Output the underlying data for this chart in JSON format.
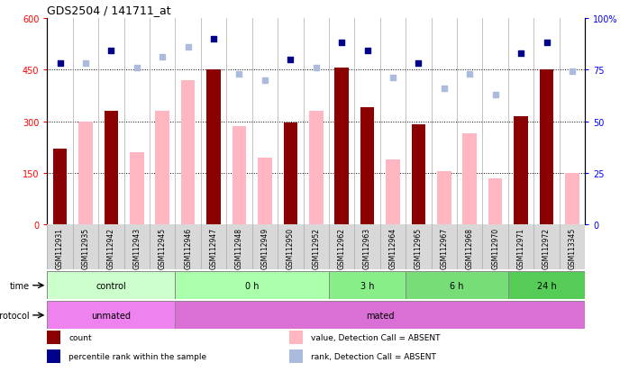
{
  "title": "GDS2504 / 141711_at",
  "samples": [
    "GSM112931",
    "GSM112935",
    "GSM112942",
    "GSM112943",
    "GSM112945",
    "GSM112946",
    "GSM112947",
    "GSM112948",
    "GSM112949",
    "GSM112950",
    "GSM112952",
    "GSM112962",
    "GSM112963",
    "GSM112964",
    "GSM112965",
    "GSM112967",
    "GSM112968",
    "GSM112970",
    "GSM112971",
    "GSM112972",
    "GSM113345"
  ],
  "count_values": [
    220,
    null,
    330,
    null,
    null,
    null,
    450,
    null,
    null,
    295,
    null,
    455,
    340,
    null,
    290,
    null,
    null,
    null,
    315,
    450,
    null
  ],
  "absent_value_values": [
    null,
    300,
    null,
    210,
    330,
    420,
    null,
    285,
    195,
    null,
    330,
    null,
    null,
    190,
    null,
    155,
    265,
    135,
    null,
    null,
    150
  ],
  "percentile_rank_values": [
    78,
    null,
    84,
    null,
    null,
    null,
    90,
    null,
    null,
    80,
    null,
    88,
    84,
    null,
    78,
    null,
    null,
    null,
    83,
    88,
    null
  ],
  "absent_rank_values": [
    null,
    78,
    null,
    76,
    81,
    86,
    null,
    73,
    70,
    null,
    76,
    null,
    null,
    71,
    null,
    66,
    73,
    63,
    null,
    null,
    74
  ],
  "ylim_left": [
    0,
    600
  ],
  "ylim_right": [
    0,
    100
  ],
  "yticks_left": [
    0,
    150,
    300,
    450,
    600
  ],
  "yticks_right": [
    0,
    25,
    50,
    75,
    100
  ],
  "ytick_labels_left": [
    "0",
    "150",
    "300",
    "450",
    "600"
  ],
  "ytick_labels_right": [
    "0",
    "25",
    "50",
    "75",
    "100%"
  ],
  "grid_lines": [
    150,
    300,
    450
  ],
  "bar_color_present": "#8B0000",
  "bar_color_absent": "#FFB6C1",
  "dot_color_present": "#00008B",
  "dot_color_absent": "#AABBDD",
  "time_groups": [
    {
      "label": "control",
      "start": 0,
      "end": 4,
      "color": "#CCFFCC"
    },
    {
      "label": "0 h",
      "start": 5,
      "end": 10,
      "color": "#AAFFAA"
    },
    {
      "label": "3 h",
      "start": 11,
      "end": 13,
      "color": "#88EE88"
    },
    {
      "label": "6 h",
      "start": 14,
      "end": 17,
      "color": "#77DD77"
    },
    {
      "label": "24 h",
      "start": 18,
      "end": 20,
      "color": "#55CC55"
    }
  ],
  "protocol_groups": [
    {
      "label": "unmated",
      "start": 0,
      "end": 4,
      "color": "#EE82EE"
    },
    {
      "label": "mated",
      "start": 5,
      "end": 20,
      "color": "#DA70D6"
    }
  ],
  "legend_items": [
    {
      "label": "count",
      "color": "#8B0000"
    },
    {
      "label": "percentile rank within the sample",
      "color": "#00008B"
    },
    {
      "label": "value, Detection Call = ABSENT",
      "color": "#FFB6C1"
    },
    {
      "label": "rank, Detection Call = ABSENT",
      "color": "#AABBDD"
    }
  ]
}
